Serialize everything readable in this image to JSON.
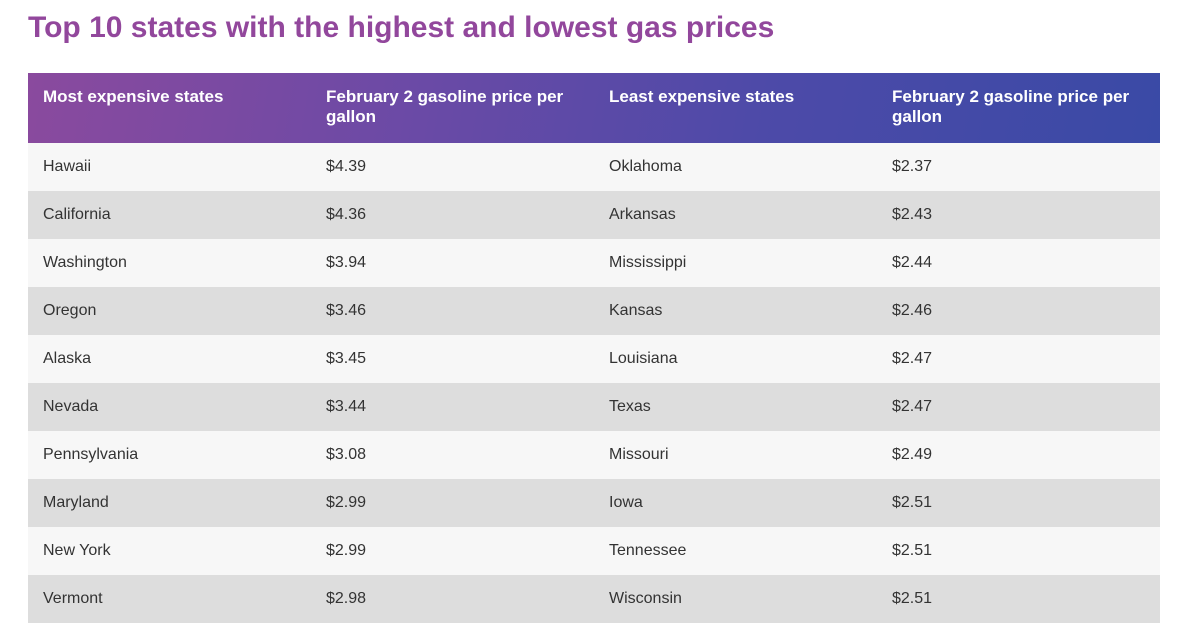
{
  "title": "Top 10 states with the highest and lowest gas prices",
  "table": {
    "headers": [
      "Most expensive states",
      "February 2 gasoline price per gallon",
      "Least expensive states",
      "February 2 gasoline price per gallon"
    ],
    "rows": [
      {
        "expensive_state": "Hawaii",
        "expensive_price": "$4.39",
        "cheap_state": "Oklahoma",
        "cheap_price": "$2.37"
      },
      {
        "expensive_state": "California",
        "expensive_price": "$4.36",
        "cheap_state": "Arkansas",
        "cheap_price": "$2.43"
      },
      {
        "expensive_state": "Washington",
        "expensive_price": "$3.94",
        "cheap_state": "Mississippi",
        "cheap_price": "$2.44"
      },
      {
        "expensive_state": "Oregon",
        "expensive_price": "$3.46",
        "cheap_state": "Kansas",
        "cheap_price": "$2.46"
      },
      {
        "expensive_state": "Alaska",
        "expensive_price": "$3.45",
        "cheap_state": "Louisiana",
        "cheap_price": "$2.47"
      },
      {
        "expensive_state": "Nevada",
        "expensive_price": "$3.44",
        "cheap_state": "Texas",
        "cheap_price": "$2.47"
      },
      {
        "expensive_state": "Pennsylvania",
        "expensive_price": "$3.08",
        "cheap_state": "Missouri",
        "cheap_price": "$2.49"
      },
      {
        "expensive_state": "Maryland",
        "expensive_price": "$2.99",
        "cheap_state": "Iowa",
        "cheap_price": "$2.51"
      },
      {
        "expensive_state": "New York",
        "expensive_price": "$2.99",
        "cheap_state": "Tennessee",
        "cheap_price": "$2.51"
      },
      {
        "expensive_state": "Vermont",
        "expensive_price": "$2.98",
        "cheap_state": "Wisconsin",
        "cheap_price": "$2.51"
      }
    ]
  },
  "colors": {
    "title": "#92479c",
    "header_gradient_start": "#8a4a9e",
    "header_gradient_end": "#3a4aa6",
    "row_light": "#f7f7f7",
    "row_dark": "#dddddd",
    "cell_text": "#333333"
  }
}
